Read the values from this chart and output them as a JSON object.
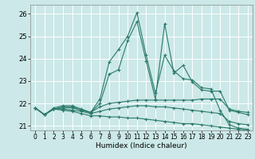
{
  "xlabel": "Humidex (Indice chaleur)",
  "background_color": "#cce8e8",
  "grid_color": "#ffffff",
  "line_color": "#2a7a6a",
  "xlim": [
    -0.5,
    23.5
  ],
  "ylim": [
    20.8,
    26.4
  ],
  "xticks": [
    0,
    1,
    2,
    3,
    4,
    5,
    6,
    7,
    8,
    9,
    10,
    11,
    12,
    13,
    14,
    15,
    16,
    17,
    18,
    19,
    20,
    21,
    22,
    23
  ],
  "yticks": [
    21,
    22,
    23,
    24,
    25,
    26
  ],
  "series": [
    [
      21.8,
      21.5,
      21.8,
      21.9,
      21.9,
      21.75,
      21.6,
      22.2,
      23.85,
      24.4,
      25.0,
      26.05,
      24.15,
      22.45,
      24.15,
      23.45,
      23.1,
      23.05,
      22.7,
      22.65,
      21.7,
      21.05,
      20.9,
      20.85
    ],
    [
      21.8,
      21.5,
      21.75,
      21.85,
      21.85,
      21.7,
      21.6,
      22.0,
      23.3,
      23.5,
      24.8,
      25.65,
      23.9,
      22.2,
      25.55,
      23.35,
      23.7,
      22.95,
      22.6,
      22.55,
      22.55,
      21.7,
      21.6,
      21.5
    ],
    [
      21.8,
      21.5,
      21.75,
      21.8,
      21.8,
      21.7,
      21.6,
      21.85,
      22.0,
      22.05,
      22.1,
      22.15,
      22.15,
      22.15,
      22.15,
      22.15,
      22.15,
      22.15,
      22.2,
      22.2,
      22.2,
      21.75,
      21.65,
      21.6
    ],
    [
      21.8,
      21.5,
      21.75,
      21.75,
      21.7,
      21.65,
      21.55,
      21.65,
      21.75,
      21.8,
      21.85,
      21.9,
      21.9,
      21.85,
      21.85,
      21.8,
      21.75,
      21.7,
      21.65,
      21.6,
      21.55,
      21.2,
      21.1,
      21.05
    ],
    [
      21.8,
      21.5,
      21.75,
      21.7,
      21.65,
      21.55,
      21.45,
      21.45,
      21.4,
      21.4,
      21.35,
      21.35,
      21.3,
      21.25,
      21.2,
      21.15,
      21.1,
      21.1,
      21.05,
      21.0,
      20.95,
      20.9,
      20.85,
      20.8
    ]
  ]
}
